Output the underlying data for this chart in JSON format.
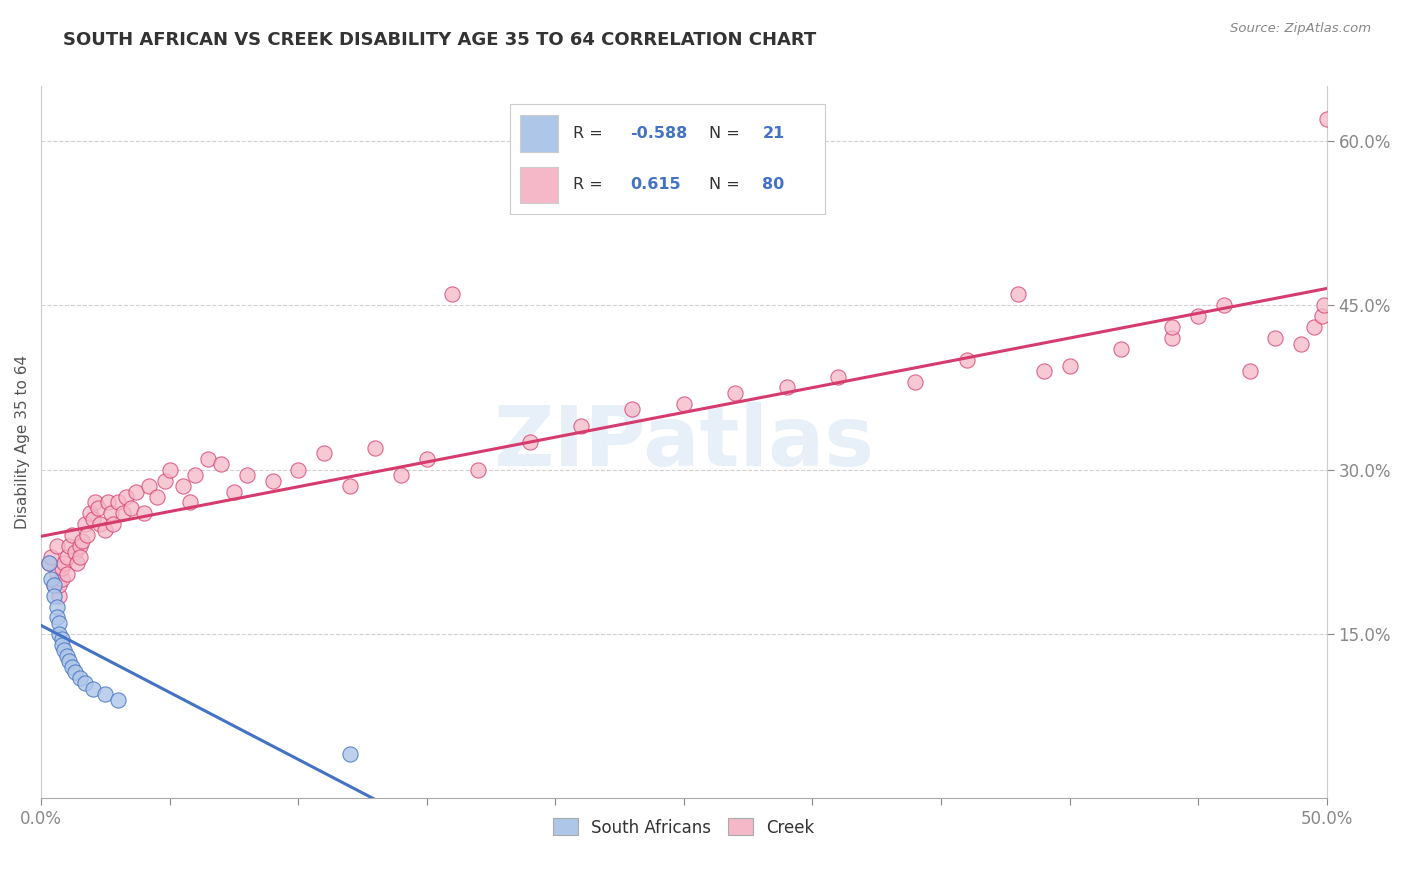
{
  "title": "SOUTH AFRICAN VS CREEK DISABILITY AGE 35 TO 64 CORRELATION CHART",
  "source": "Source: ZipAtlas.com",
  "ylabel": "Disability Age 35 to 64",
  "xlim": [
    0.0,
    0.5
  ],
  "ylim": [
    0.0,
    0.65
  ],
  "xticks": [
    0.0,
    0.05,
    0.1,
    0.15,
    0.2,
    0.25,
    0.3,
    0.35,
    0.4,
    0.45,
    0.5
  ],
  "ytick_positions": [
    0.15,
    0.3,
    0.45,
    0.6
  ],
  "ytick_labels": [
    "15.0%",
    "30.0%",
    "45.0%",
    "60.0%"
  ],
  "legend_r_sa": "-0.588",
  "legend_n_sa": "21",
  "legend_r_creek": "0.615",
  "legend_n_creek": "80",
  "sa_color": "#aec6e8",
  "creek_color": "#f5b8c8",
  "sa_line_color": "#4472c4",
  "creek_line_color": "#d63b6e",
  "watermark_text": "ZIPatlas",
  "sa_scatter_x": [
    0.003,
    0.004,
    0.005,
    0.005,
    0.006,
    0.006,
    0.007,
    0.007,
    0.008,
    0.008,
    0.009,
    0.01,
    0.011,
    0.012,
    0.013,
    0.015,
    0.017,
    0.02,
    0.025,
    0.03,
    0.12
  ],
  "sa_scatter_y": [
    0.215,
    0.2,
    0.195,
    0.185,
    0.175,
    0.165,
    0.16,
    0.15,
    0.145,
    0.14,
    0.135,
    0.13,
    0.125,
    0.12,
    0.115,
    0.11,
    0.105,
    0.1,
    0.095,
    0.09,
    0.04
  ],
  "creek_scatter_x": [
    0.003,
    0.004,
    0.005,
    0.006,
    0.006,
    0.007,
    0.007,
    0.008,
    0.008,
    0.009,
    0.01,
    0.01,
    0.011,
    0.012,
    0.013,
    0.014,
    0.015,
    0.015,
    0.016,
    0.017,
    0.018,
    0.019,
    0.02,
    0.021,
    0.022,
    0.023,
    0.025,
    0.026,
    0.027,
    0.028,
    0.03,
    0.032,
    0.033,
    0.035,
    0.037,
    0.04,
    0.042,
    0.045,
    0.048,
    0.05,
    0.055,
    0.058,
    0.06,
    0.065,
    0.07,
    0.075,
    0.08,
    0.09,
    0.1,
    0.11,
    0.12,
    0.13,
    0.14,
    0.15,
    0.16,
    0.17,
    0.19,
    0.21,
    0.23,
    0.25,
    0.27,
    0.29,
    0.31,
    0.34,
    0.36,
    0.38,
    0.39,
    0.4,
    0.42,
    0.44,
    0.44,
    0.45,
    0.46,
    0.47,
    0.48,
    0.49,
    0.495,
    0.498,
    0.499,
    0.5
  ],
  "creek_scatter_y": [
    0.215,
    0.22,
    0.195,
    0.205,
    0.23,
    0.185,
    0.195,
    0.2,
    0.21,
    0.215,
    0.22,
    0.205,
    0.23,
    0.24,
    0.225,
    0.215,
    0.23,
    0.22,
    0.235,
    0.25,
    0.24,
    0.26,
    0.255,
    0.27,
    0.265,
    0.25,
    0.245,
    0.27,
    0.26,
    0.25,
    0.27,
    0.26,
    0.275,
    0.265,
    0.28,
    0.26,
    0.285,
    0.275,
    0.29,
    0.3,
    0.285,
    0.27,
    0.295,
    0.31,
    0.305,
    0.28,
    0.295,
    0.29,
    0.3,
    0.315,
    0.285,
    0.32,
    0.295,
    0.31,
    0.46,
    0.3,
    0.325,
    0.34,
    0.355,
    0.36,
    0.37,
    0.375,
    0.385,
    0.38,
    0.4,
    0.46,
    0.39,
    0.395,
    0.41,
    0.42,
    0.43,
    0.44,
    0.45,
    0.39,
    0.42,
    0.415,
    0.43,
    0.44,
    0.45,
    0.62
  ],
  "background_color": "#ffffff",
  "grid_color": "#cccccc",
  "title_color": "#333333",
  "title_fontsize": 13,
  "axis_label_color": "#555555",
  "tick_label_color": "#4472c4",
  "source_color": "#888888",
  "legend_text_color": "#333333",
  "legend_value_color": "#4472c4"
}
